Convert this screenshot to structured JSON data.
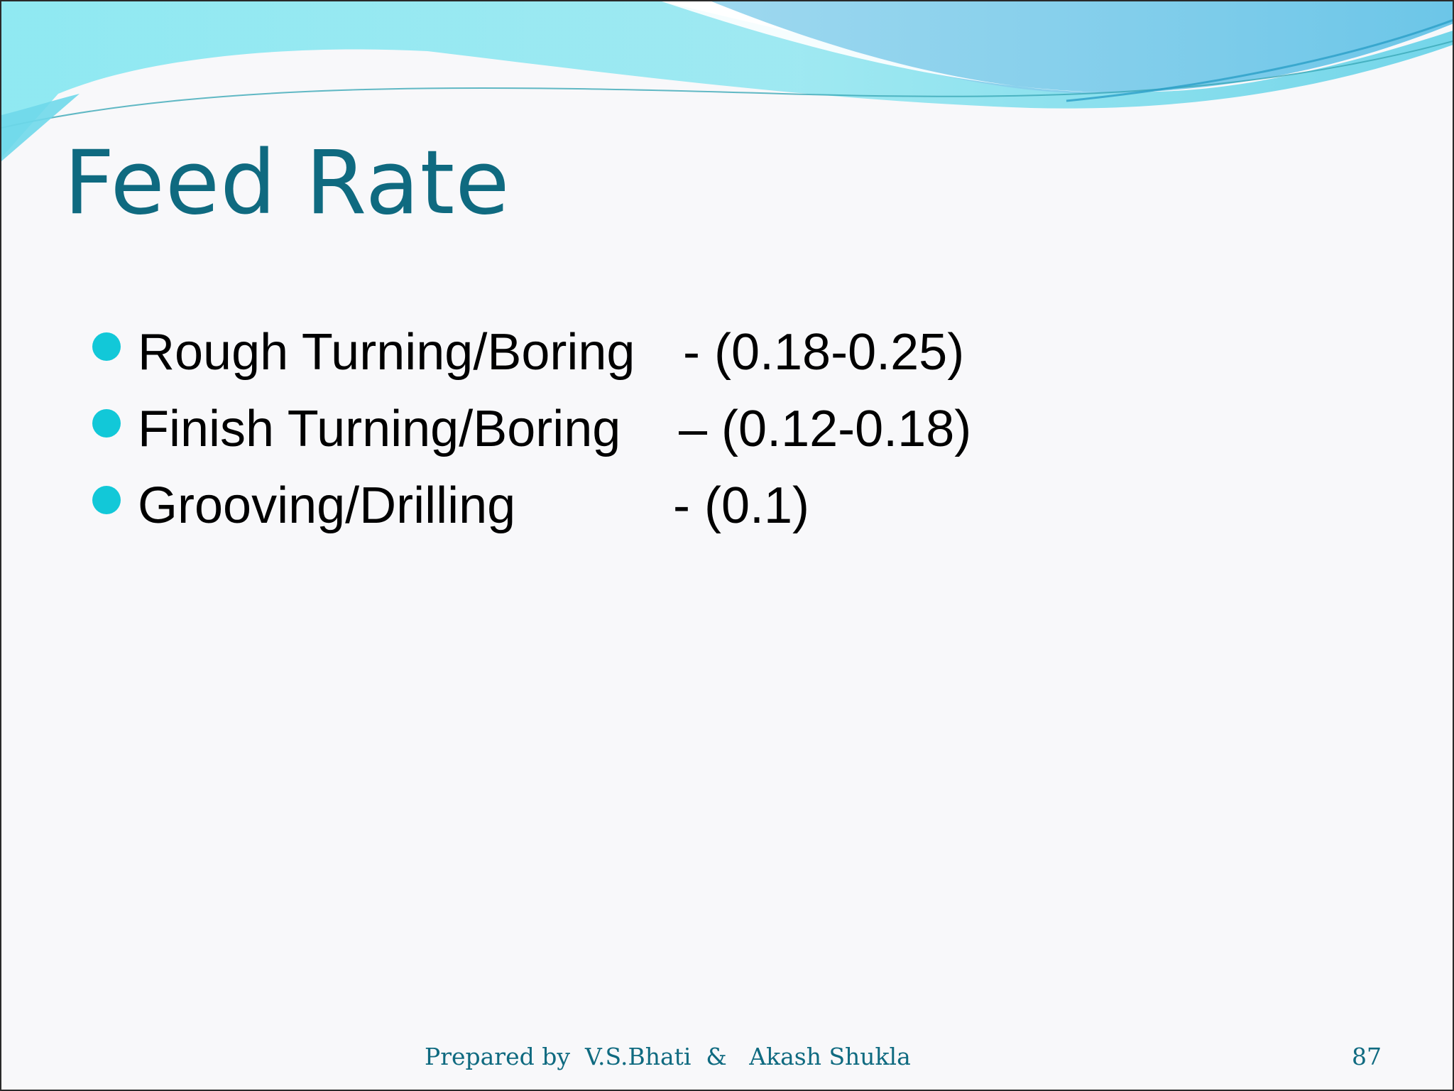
{
  "slide": {
    "title": "Feed Rate",
    "bullets": [
      {
        "label": "Rough Turning/Boring",
        "value": "- (0.18-0.25)"
      },
      {
        "label": "Finish Turning/Boring",
        "value": "– (0.12-0.18)"
      },
      {
        "label": "Grooving/Drilling",
        "value": "- (0.1)"
      }
    ],
    "footer": {
      "credit": "Prepared by  V.S.Bhati  &   Akash Shukla",
      "page_number": "87"
    }
  },
  "colors": {
    "title": "#0f6a80",
    "bullet": "#12c8d8",
    "wave_light": "#8ee8f2",
    "wave_mid": "#5fd2e8",
    "wave_dark": "#2bb7d6",
    "background": "#f8f8fa"
  }
}
